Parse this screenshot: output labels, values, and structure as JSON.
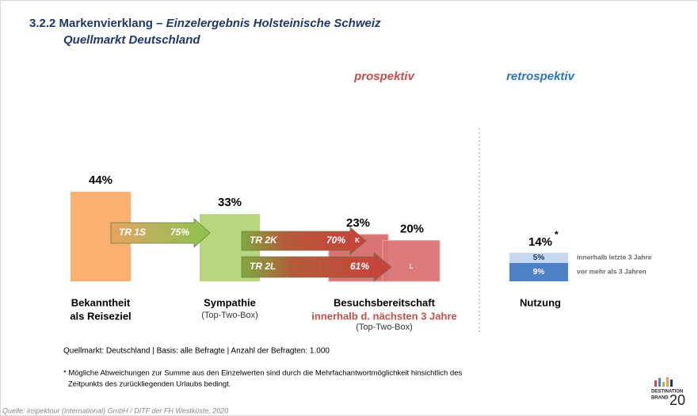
{
  "chart_data": {
    "type": "bar",
    "title": "3.2.2 Markenvierklang –",
    "title_italic": "Einzelergebnis Holsteinische Schweiz",
    "subtitle": "Quellmarkt Deutschland",
    "sections": [
      {
        "label": "prospektiv",
        "color": "#c0504d"
      },
      {
        "label": "retrospektiv",
        "color": "#2e75b6"
      }
    ],
    "groups": [
      {
        "label": [
          "Bekanntheit",
          "als Reiseziel"
        ]
      },
      {
        "label": [
          "Sympathie"
        ],
        "note": "(Top-Two-Box)"
      },
      {
        "label": [
          "Besuchsbereitschaft"
        ],
        "highlight": "innerhalb d. nächsten 3 Jahre",
        "note": "(Top-Two-Box)"
      },
      {
        "label": [
          "Nutzung"
        ]
      }
    ],
    "bars": [
      {
        "value": 44,
        "value_label": "44%",
        "color": "#fab070"
      },
      {
        "value": 33,
        "value_label": "33%",
        "color": "#b7d67e"
      },
      {
        "value": 23,
        "value_label": "23%",
        "color": "#da7474",
        "tag": "K"
      },
      {
        "value": 20,
        "value_label": "20%",
        "color": "#da7474",
        "tag": "L"
      }
    ],
    "arrows": [
      {
        "label": "TR 1S",
        "value": 75,
        "value_label": "75%"
      },
      {
        "label": "TR 2K",
        "value": 70,
        "value_label": "70%"
      },
      {
        "label": "TR 2L",
        "value": 61,
        "value_label": "61%"
      }
    ],
    "usage": {
      "total_label": "14%",
      "total_mark": "*",
      "series": [
        {
          "name": "innerhalb letzte 3 Jahre",
          "value": 5,
          "value_label": "5%",
          "color": "#c6d9f1"
        },
        {
          "name": "vor mehr als 3 Jahren",
          "value": 9,
          "value_label": "9%",
          "color": "#4f81c7"
        }
      ]
    },
    "basis": "Quellmarkt: Deutschland | Basis: alle Befragte | Anzahl der Befragten: 1.000",
    "footnote": [
      "* Mögliche Abweichungen zur Summe aus den Einzelwerten sind durch die Mehrfachantwortmöglichkeit hinsichtlich des",
      "Zeitpunkts des zurückliegenden Urlaubs bedingt."
    ],
    "source": "Quelle: inspektour (international) GmbH / DITF der FH Westküste, 2020",
    "logo": [
      "DESTINATION",
      "BRAND",
      "20"
    ]
  }
}
